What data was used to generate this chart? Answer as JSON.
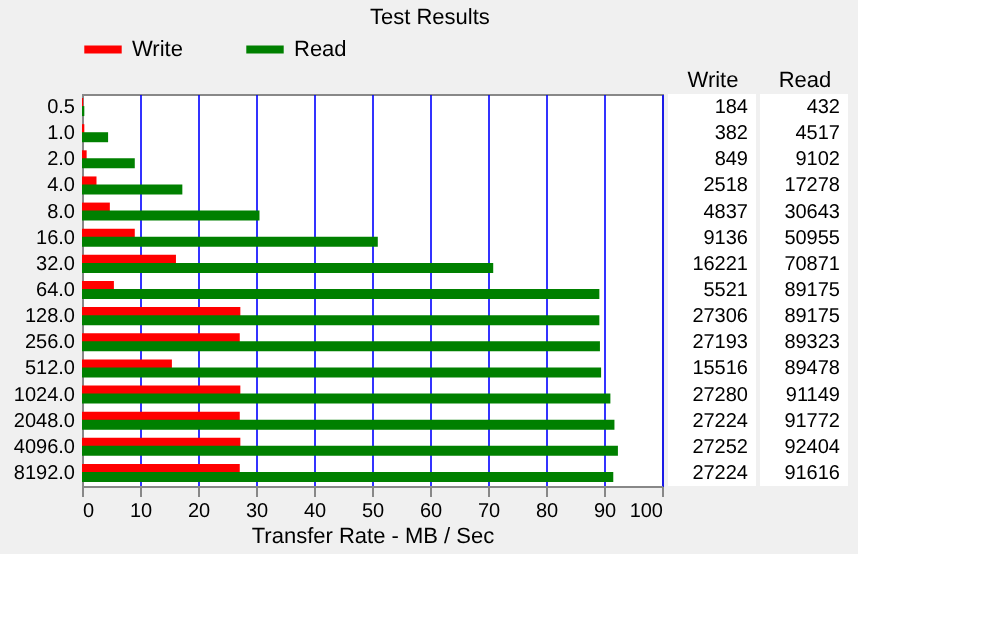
{
  "chart_data": {
    "type": "bar",
    "orientation": "horizontal",
    "title": "Test Results",
    "xlabel": "Transfer Rate - MB / Sec",
    "categories": [
      "0.5",
      "1.0",
      "2.0",
      "4.0",
      "8.0",
      "16.0",
      "32.0",
      "64.0",
      "128.0",
      "256.0",
      "512.0",
      "1024.0",
      "2048.0",
      "4096.0",
      "8192.0"
    ],
    "series": [
      {
        "name": "Write",
        "color": "#ff0000",
        "values": [
          0.2,
          0.4,
          0.8,
          2.5,
          4.8,
          9.1,
          16.2,
          5.5,
          27.3,
          27.2,
          15.5,
          27.3,
          27.2,
          27.3,
          27.2
        ]
      },
      {
        "name": "Read",
        "color": "#008000",
        "values": [
          0.4,
          4.5,
          9.1,
          17.3,
          30.6,
          51.0,
          70.9,
          89.2,
          89.2,
          89.3,
          89.5,
          91.1,
          91.8,
          92.4,
          91.6
        ]
      }
    ],
    "annotations": [
      "184",
      "432",
      "382",
      "4517",
      "849",
      "9102",
      "2518",
      "17278",
      "4837",
      "30643",
      "9136",
      "50955",
      "16221",
      "70871",
      "5521",
      "89175",
      "27306",
      "89175",
      "27193",
      "89323",
      "15516",
      "89478",
      "27280",
      "91149",
      "27224",
      "91772",
      "27252",
      "92404",
      "27224",
      "91616"
    ],
    "xlim": [
      0,
      100
    ],
    "xticks": [
      0,
      10,
      20,
      30,
      40,
      50,
      60,
      70,
      80,
      90,
      100
    ],
    "grid": "x",
    "legend": "top"
  }
}
